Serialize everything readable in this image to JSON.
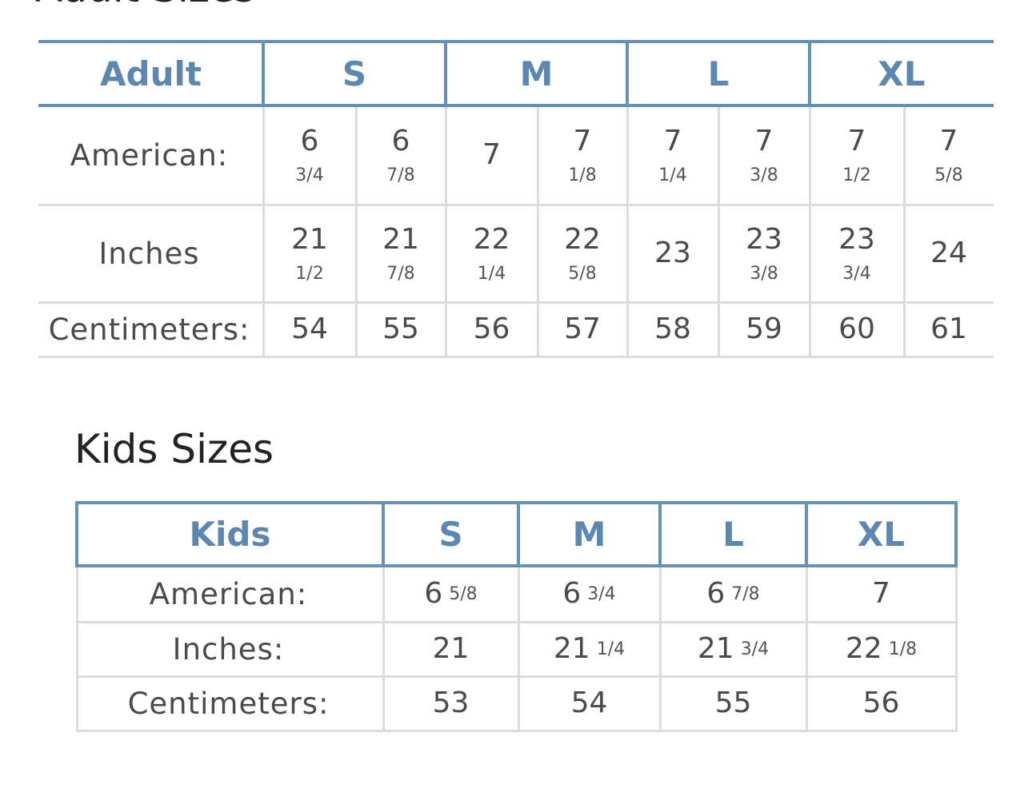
{
  "adult": {
    "heading": "Adult Sizes",
    "header": [
      "Adult",
      "S",
      "M",
      "L",
      "XL"
    ],
    "rows": [
      {
        "label": "American:",
        "cells": [
          [
            "6",
            "3/4"
          ],
          [
            "6",
            "7/8"
          ],
          [
            "7"
          ],
          [
            "7",
            "1/8"
          ],
          [
            "7",
            "1/4"
          ],
          [
            "7",
            "3/8"
          ],
          [
            "7",
            "1/2"
          ],
          [
            "7",
            "5/8"
          ]
        ]
      },
      {
        "label": "Inches",
        "cells": [
          [
            "21",
            "1/2"
          ],
          [
            "21",
            "7/8"
          ],
          [
            "22",
            "1/4"
          ],
          [
            "22",
            "5/8"
          ],
          [
            "23"
          ],
          [
            "23",
            "3/8"
          ],
          [
            "23",
            "3/4"
          ],
          [
            "24"
          ]
        ]
      },
      {
        "label": "Centimeters:",
        "cells": [
          [
            "54"
          ],
          [
            "55"
          ],
          [
            "56"
          ],
          [
            "57"
          ],
          [
            "58"
          ],
          [
            "59"
          ],
          [
            "60"
          ],
          [
            "61"
          ]
        ]
      }
    ]
  },
  "kids": {
    "heading": "Kids Sizes",
    "header": [
      "Kids",
      "S",
      "M",
      "L",
      "XL"
    ],
    "rows": [
      {
        "label": "American:",
        "cells": [
          [
            "6",
            "5/8"
          ],
          [
            "6",
            "3/4"
          ],
          [
            "6",
            "7/8"
          ],
          [
            "7"
          ]
        ]
      },
      {
        "label": "Inches:",
        "cells": [
          [
            "21"
          ],
          [
            "21",
            "1/4"
          ],
          [
            "21",
            "3/4"
          ],
          [
            "22",
            "1/8"
          ]
        ]
      },
      {
        "label": "Centimeters:",
        "cells": [
          [
            "53"
          ],
          [
            "54"
          ],
          [
            "55"
          ],
          [
            "56"
          ]
        ]
      }
    ]
  }
}
